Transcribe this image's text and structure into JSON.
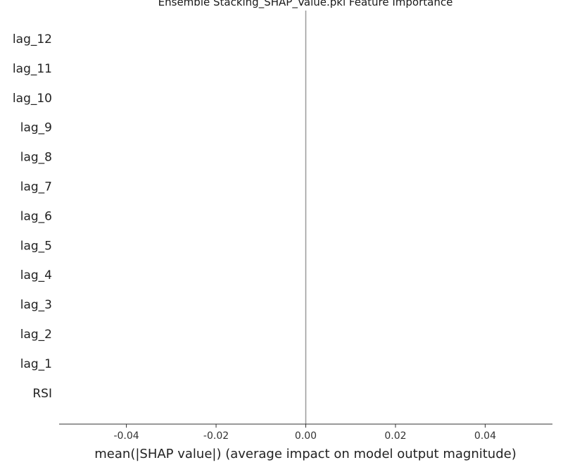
{
  "chart_data": {
    "type": "bar",
    "title": "Ensemble Stacking_SHAP_Value.pkl Feature Importance",
    "xlabel": "mean(|SHAP value|) (average impact on model output magnitude)",
    "ylabel": "",
    "categories": [
      "lag_12",
      "lag_11",
      "lag_10",
      "lag_9",
      "lag_8",
      "lag_7",
      "lag_6",
      "lag_5",
      "lag_4",
      "lag_3",
      "lag_2",
      "lag_1",
      "RSI"
    ],
    "values": [
      0,
      0,
      0,
      0,
      0,
      0,
      0,
      0,
      0,
      0,
      0,
      0,
      0
    ],
    "xlim": [
      -0.055,
      0.055
    ],
    "xticks": [
      -0.04,
      -0.02,
      0.0,
      0.02,
      0.04
    ],
    "xtick_labels": [
      "-0.04",
      "-0.02",
      "0.00",
      "0.02",
      "0.04"
    ],
    "orientation": "horizontal",
    "grid": false,
    "zero_line": true,
    "colors": {
      "zero_line": "#999999",
      "axis": "#333333",
      "bar": "#1e88e5"
    }
  }
}
